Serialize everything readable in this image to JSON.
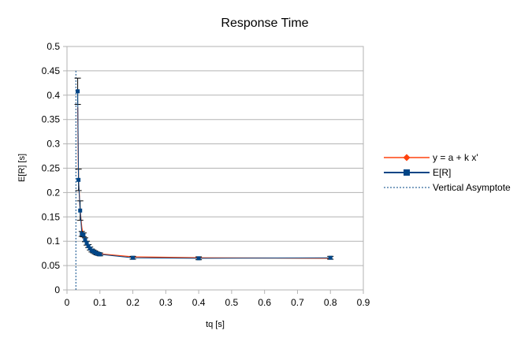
{
  "chart_data": {
    "type": "line",
    "title": "Response Time",
    "xlabel": "tq [s]",
    "ylabel": "E[R] [s]",
    "xlim": [
      0,
      0.9
    ],
    "ylim": [
      0,
      0.5
    ],
    "x_ticks": [
      "0",
      "0.1",
      "0.2",
      "0.3",
      "0.4",
      "0.5",
      "0.6",
      "0.7",
      "0.8",
      "0.9"
    ],
    "y_ticks": [
      "0",
      "0.05",
      "0.1",
      "0.15",
      "0.2",
      "0.25",
      "0.3",
      "0.35",
      "0.4",
      "0.45",
      "0.5"
    ],
    "grid": true,
    "legend_position": "right",
    "series": [
      {
        "name": "y = a + k x'",
        "kind": "fit",
        "color": "#ff420e",
        "marker": "diamond",
        "x": [
          0.0325,
          0.035,
          0.04,
          0.045,
          0.05,
          0.055,
          0.06,
          0.065,
          0.07,
          0.075,
          0.08,
          0.085,
          0.09,
          0.095,
          0.1,
          0.2,
          0.4,
          0.8
        ],
        "y": [
          0.375,
          0.225,
          0.163,
          0.128,
          0.111,
          0.101,
          0.094,
          0.089,
          0.085,
          0.082,
          0.08,
          0.078,
          0.076,
          0.075,
          0.074,
          0.068,
          0.066,
          0.065
        ]
      },
      {
        "name": "E[R]",
        "kind": "data",
        "color": "#004586",
        "marker": "square",
        "x": [
          0.0325,
          0.035,
          0.04,
          0.045,
          0.05,
          0.055,
          0.06,
          0.065,
          0.07,
          0.075,
          0.08,
          0.085,
          0.09,
          0.095,
          0.1,
          0.2,
          0.4,
          0.8
        ],
        "y": [
          0.408,
          0.226,
          0.163,
          0.115,
          0.113,
          0.103,
          0.096,
          0.09,
          0.085,
          0.081,
          0.079,
          0.077,
          0.075,
          0.074,
          0.073,
          0.066,
          0.065,
          0.066
        ],
        "err": [
          0.027,
          0.022,
          0.02,
          0.005,
          0.004,
          0.004,
          0.004,
          0.003,
          0.003,
          0.003,
          0.003,
          0.003,
          0.003,
          0.003,
          0.003,
          0.003,
          0.003,
          0.003
        ]
      },
      {
        "name": "Vertical Asymptote",
        "kind": "asymptote",
        "color": "#004586",
        "style": "dashed",
        "x_value": 0.027
      }
    ]
  }
}
